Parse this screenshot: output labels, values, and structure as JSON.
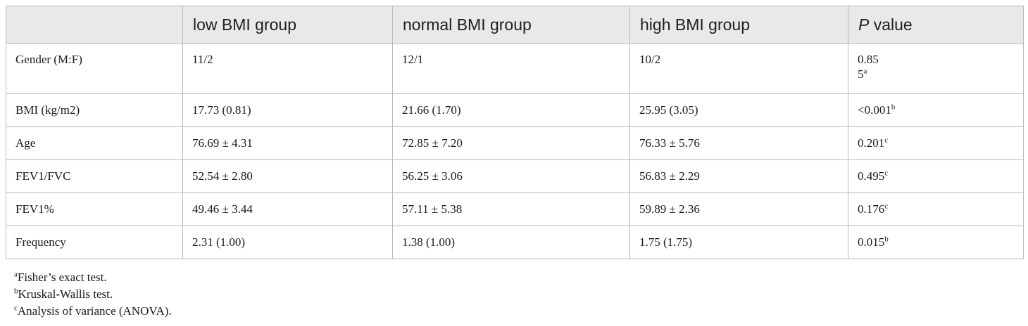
{
  "table": {
    "columns": [
      "",
      "low BMI group",
      "normal BMI group",
      "high BMI group",
      "P",
      "value"
    ],
    "rows": [
      {
        "label": "Gender (M:F)",
        "low": "11/2",
        "normal": "12/1",
        "high": "10/2",
        "p_line1": "0.85",
        "p_line2": "5",
        "p_sup": "a"
      },
      {
        "label": "BMI (kg/m2)",
        "low": "17.73 (0.81)",
        "normal": "21.66 (1.70)",
        "high": "25.95 (3.05)",
        "p": "<0.001",
        "p_sup": "b"
      },
      {
        "label": "Age",
        "low": "76.69 ± 4.31",
        "normal": "72.85 ± 7.20",
        "high": "76.33 ± 5.76",
        "p": "0.201",
        "p_sup": "c"
      },
      {
        "label": "FEV1/FVC",
        "low": "52.54 ± 2.80",
        "normal": "56.25 ± 3.06",
        "high": "56.83 ± 2.29",
        "p": "0.495",
        "p_sup": "c"
      },
      {
        "label": "FEV1%",
        "low": "49.46 ± 3.44",
        "normal": "57.11 ± 5.38",
        "high": "59.89 ± 2.36",
        "p": "0.176",
        "p_sup": "c"
      },
      {
        "label": "Frequency",
        "low": "2.31 (1.00)",
        "normal": "1.38 (1.00)",
        "high": "1.75 (1.75)",
        "p": "0.015",
        "p_sup": "b"
      }
    ]
  },
  "footnotes": [
    {
      "mark": "a",
      "text": "Fisher’s exact test."
    },
    {
      "mark": "b",
      "text": "Kruskal-Wallis test."
    },
    {
      "mark": "c",
      "text": "Analysis of variance (ANOVA)."
    }
  ]
}
